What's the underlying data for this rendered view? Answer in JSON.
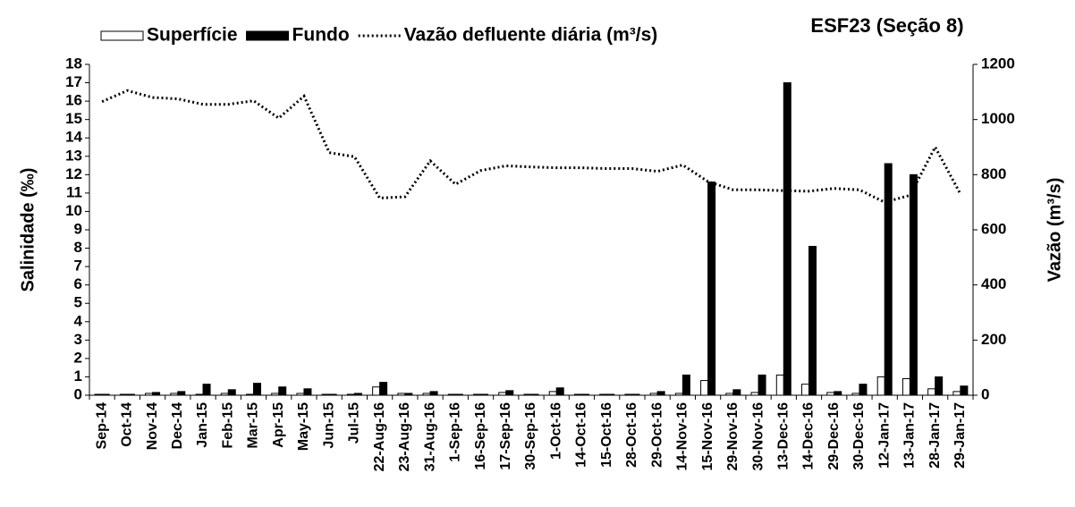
{
  "chart_data": {
    "type": "bar",
    "title": "ESF23 (Seção 8)",
    "ylabel": "Salinidade (‰)",
    "y2label": "Vazão (m³/s)",
    "categories": [
      "Sep-14",
      "Oct-14",
      "Nov-14",
      "Dec-14",
      "Jan-15",
      "Feb-15",
      "Mar-15",
      "Apr-15",
      "May-15",
      "Jun-15",
      "Jul-15",
      "22-Aug-16",
      "23-Aug-16",
      "31-Aug-16",
      "1-Sep-16",
      "16-Sep-16",
      "17-Sep-16",
      "30-Sep-16",
      "1-Oct-16",
      "14-Oct-16",
      "15-Oct-16",
      "28-Oct-16",
      "29-Oct-16",
      "14-Nov-16",
      "15-Nov-16",
      "29-Nov-16",
      "30-Nov-16",
      "13-Dec-16",
      "14-Dec-16",
      "29-Dec-16",
      "30-Dec-16",
      "12-Jan-17",
      "13-Jan-17",
      "28-Jan-17",
      "29-Jan-17"
    ],
    "series": [
      {
        "name": "Superfície",
        "type": "bar",
        "color": "#ffffff",
        "values": [
          0.05,
          0.05,
          0.1,
          0.1,
          0.05,
          0.1,
          0.05,
          0.1,
          0.1,
          0.05,
          0.05,
          0.45,
          0.1,
          0.1,
          0.05,
          0.05,
          0.15,
          0.05,
          0.2,
          0.05,
          0.05,
          0.05,
          0.1,
          0.1,
          0.8,
          0.1,
          0.15,
          1.1,
          0.6,
          0.15,
          0.1,
          1.0,
          0.9,
          0.35,
          0.2
        ]
      },
      {
        "name": "Fundo",
        "type": "bar",
        "color": "#000000",
        "values": [
          0.05,
          0.05,
          0.15,
          0.2,
          0.6,
          0.3,
          0.65,
          0.45,
          0.35,
          0.05,
          0.1,
          0.7,
          0.1,
          0.2,
          0.05,
          0.05,
          0.25,
          0.05,
          0.4,
          0.05,
          0.05,
          0.05,
          0.2,
          1.1,
          11.6,
          0.3,
          1.1,
          17,
          8.1,
          0.2,
          0.6,
          12.6,
          12.0,
          1.0,
          0.5
        ]
      },
      {
        "name": "Vazão defluente diária (m³/s)",
        "type": "line",
        "axis": "y2",
        "color": "#000000",
        "values": [
          1065,
          1105,
          1080,
          1075,
          1055,
          1055,
          1068,
          1005,
          1085,
          880,
          865,
          715,
          720,
          850,
          765,
          815,
          832,
          828,
          825,
          825,
          822,
          822,
          812,
          835,
          775,
          745,
          745,
          742,
          740,
          750,
          745,
          700,
          725,
          900,
          730
        ]
      }
    ],
    "ylim": [
      0,
      18
    ],
    "yticks": [
      0,
      1,
      2,
      3,
      4,
      5,
      6,
      7,
      8,
      9,
      10,
      11,
      12,
      13,
      14,
      15,
      16,
      17,
      18
    ],
    "y2lim": [
      0,
      1200
    ],
    "y2ticks": [
      0,
      200,
      400,
      600,
      800,
      1000,
      1200
    ],
    "grid": false
  }
}
